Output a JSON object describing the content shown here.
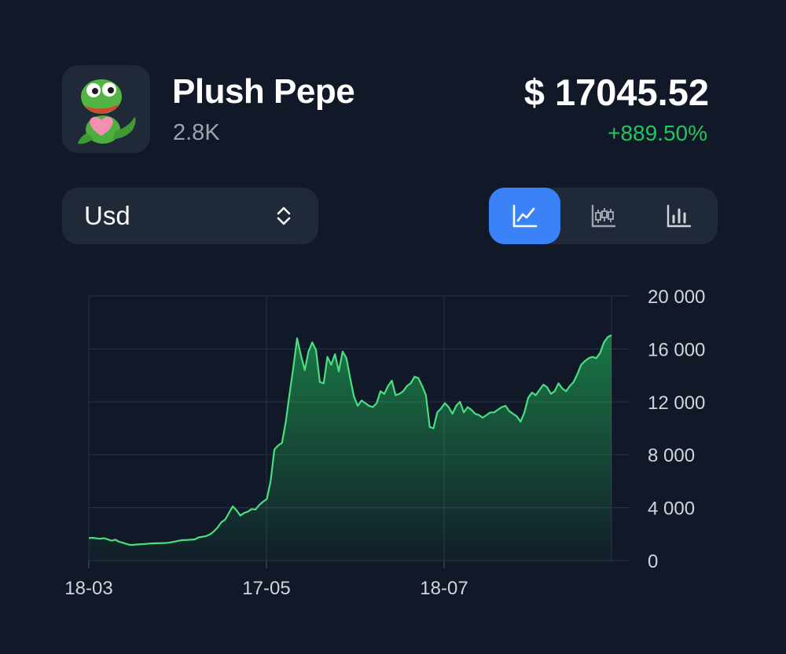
{
  "item": {
    "name": "Plush Pepe",
    "count": "2.8K",
    "price": "$ 17045.52",
    "change": "+889.50%",
    "avatar_icon": "pepe-plush-icon"
  },
  "currency": {
    "label": "Usd",
    "icon": "chevron-up-down-icon"
  },
  "chart_type_toggle": {
    "options": [
      {
        "icon": "line-chart-icon",
        "active": true
      },
      {
        "icon": "candlestick-chart-icon",
        "active": false
      },
      {
        "icon": "bar-chart-icon",
        "active": false
      }
    ],
    "active_color": "#3b82f6"
  },
  "colors": {
    "background": "#111827",
    "card": "#1f2937",
    "positive": "#22c55e",
    "muted": "#9ca3af"
  },
  "chart_data": {
    "type": "area",
    "title": "",
    "xlabel": "",
    "ylabel": "",
    "x_ticks": [
      "18-03",
      "17-05",
      "18-07"
    ],
    "y_ticks": [
      "20 000",
      "16 000",
      "12 000",
      "8 000",
      "4 000",
      "0"
    ],
    "ylim": [
      0,
      20000
    ],
    "grid": true,
    "y_axis_side": "right",
    "series": [
      {
        "values": [
          1700,
          1720,
          1680,
          1650,
          1700,
          1600,
          1500,
          1580,
          1420,
          1350,
          1250,
          1180,
          1200,
          1220,
          1240,
          1260,
          1290,
          1300,
          1310,
          1320,
          1330,
          1350,
          1400,
          1450,
          1520,
          1550,
          1560,
          1580,
          1600,
          1750,
          1800,
          1850,
          1980,
          2200,
          2500,
          2900,
          3100,
          3600,
          4100,
          3800,
          3400,
          3600,
          3700,
          3900,
          3850,
          4200,
          4450,
          4650,
          6000,
          8400,
          8700,
          8900,
          10500,
          12600,
          14600,
          16800,
          15500,
          14400,
          15800,
          16500,
          15900,
          13500,
          13400,
          15400,
          14800,
          15600,
          14300,
          15800,
          15300,
          13800,
          12400,
          11700,
          12100,
          11900,
          11700,
          11600,
          11900,
          12800,
          12600,
          13200,
          13600,
          12500,
          12600,
          12800,
          13200,
          13400,
          13900,
          13800,
          13200,
          12500,
          10100,
          10000,
          11200,
          11500,
          11900,
          11600,
          11100,
          11700,
          12000,
          11200,
          11600,
          11400,
          11100,
          11000,
          10800,
          11000,
          11200,
          11200,
          11400,
          11600,
          11700,
          11300,
          11100,
          10900,
          10500,
          11200,
          12300,
          12700,
          12500,
          12900,
          13300,
          13100,
          12600,
          12800,
          13400,
          13000,
          12800,
          13200,
          13500,
          14100,
          14800,
          15100,
          15300,
          15400,
          15300,
          15700,
          16500,
          16900,
          17045
        ]
      }
    ]
  }
}
